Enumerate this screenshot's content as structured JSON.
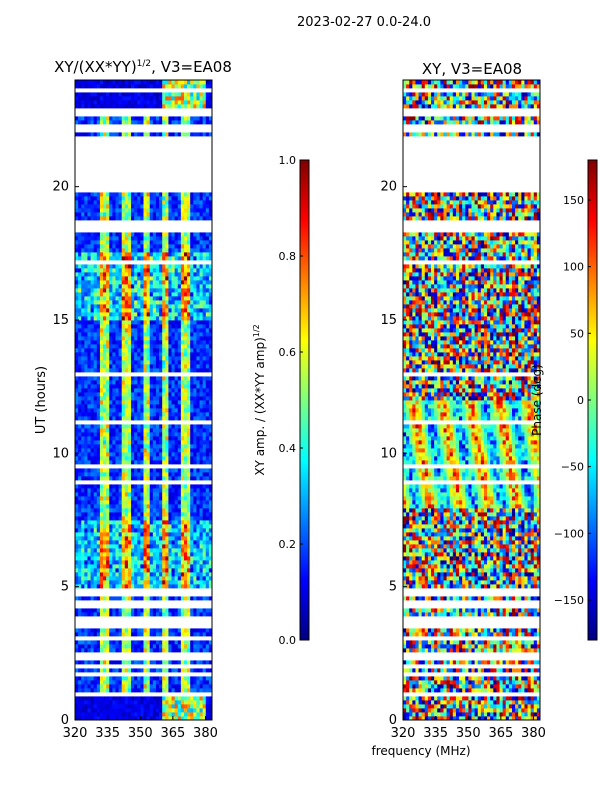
{
  "suptitle": "2023-02-27 0.0-24.0",
  "shared_xlabel": "frequency (MHz)",
  "colormap": [
    "#00007f",
    "#0000ff",
    "#007fff",
    "#00ffff",
    "#7fff7f",
    "#ffff00",
    "#ff7f00",
    "#ff0000",
    "#7f0000"
  ],
  "chart_data": [
    {
      "type": "heatmap",
      "title_main": "XY/(XX*YY)",
      "title_exp": "1/2",
      "title_tail": ", V3=EA08",
      "ylabel": "UT (hours)",
      "xlabel": "frequency (MHz)",
      "xlim": [
        320,
        383
      ],
      "ylim": [
        0,
        24
      ],
      "xticks": [
        320,
        335,
        350,
        365,
        380
      ],
      "yticks": [
        0,
        5,
        10,
        15,
        20
      ],
      "quantity": "amplitude",
      "colorbar": {
        "label_main": "XY amp. / (XX*YY amp)",
        "label_exp": "1/2",
        "range": [
          0.0,
          1.0
        ],
        "ticks": [
          "0.0",
          "0.2",
          "0.4",
          "0.6",
          "0.8",
          "1.0"
        ]
      }
    },
    {
      "type": "heatmap",
      "title_main": "XY, V3=EA08",
      "ylabel": "",
      "xlabel": "frequency (MHz)",
      "xlim": [
        320,
        383
      ],
      "ylim": [
        0,
        24
      ],
      "xticks": [
        320,
        335,
        350,
        365,
        380
      ],
      "yticks": [
        0,
        5,
        10,
        15,
        20
      ],
      "quantity": "phase",
      "colorbar": {
        "label_main": "Phase (deg)",
        "range": [
          -180,
          180
        ],
        "ticks": [
          "150",
          "100",
          "50",
          "0",
          "−50",
          "−100",
          "−150"
        ]
      }
    }
  ]
}
